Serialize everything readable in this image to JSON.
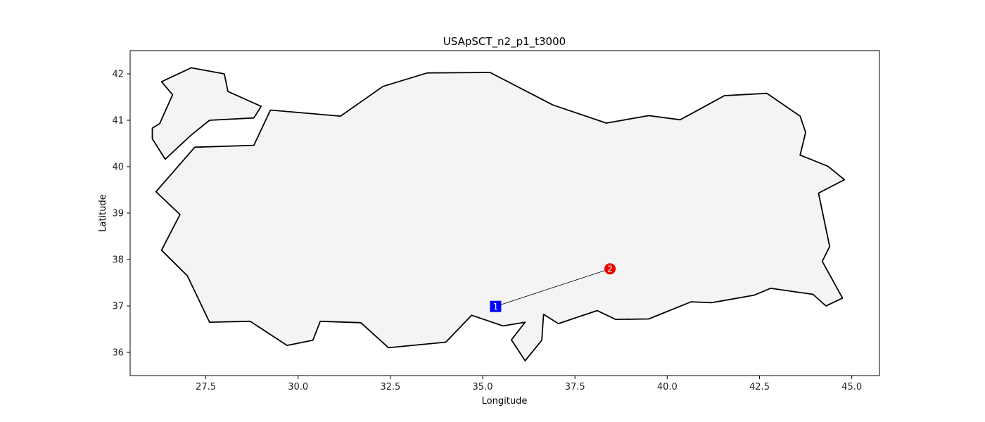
{
  "chart_data": {
    "type": "scatter",
    "title": "USApSCT_n2_p1_t3000",
    "xlabel": "Longitude",
    "ylabel": "Latitude",
    "xlim": [
      25.45,
      45.75
    ],
    "ylim": [
      35.5,
      42.5
    ],
    "xticks": [
      27.5,
      30.0,
      32.5,
      35.0,
      37.5,
      40.0,
      42.5,
      45.0
    ],
    "xtick_labels": [
      "27.5",
      "30.0",
      "32.5",
      "35.0",
      "37.5",
      "40.0",
      "42.5",
      "45.0"
    ],
    "yticks": [
      36,
      37,
      38,
      39,
      40,
      41,
      42
    ],
    "ytick_labels": [
      "36",
      "37",
      "38",
      "39",
      "40",
      "41",
      "42"
    ],
    "grid": false,
    "regions": [
      {
        "fill": "#f4f4f4",
        "stroke": "#000000",
        "points": [
          [
            26.3,
            41.83
          ],
          [
            27.1,
            42.13
          ],
          [
            28.0,
            42.0
          ],
          [
            28.1,
            41.62
          ],
          [
            29.0,
            41.3
          ],
          [
            28.8,
            41.05
          ],
          [
            27.6,
            41.0
          ],
          [
            27.1,
            40.68
          ],
          [
            26.4,
            40.16
          ],
          [
            26.05,
            40.6
          ],
          [
            26.05,
            40.83
          ],
          [
            26.25,
            40.93
          ],
          [
            26.6,
            41.55
          ],
          [
            26.3,
            41.83
          ]
        ]
      },
      {
        "fill": "#f4f4f4",
        "stroke": "#000000",
        "points": [
          [
            27.2,
            40.42
          ],
          [
            28.8,
            40.46
          ],
          [
            29.25,
            41.22
          ],
          [
            31.15,
            41.09
          ],
          [
            32.3,
            41.73
          ],
          [
            33.5,
            42.02
          ],
          [
            35.2,
            42.03
          ],
          [
            36.9,
            41.33
          ],
          [
            38.35,
            40.94
          ],
          [
            39.5,
            41.1
          ],
          [
            40.35,
            41.01
          ],
          [
            41.55,
            41.53
          ],
          [
            42.7,
            41.58
          ],
          [
            43.6,
            41.09
          ],
          [
            43.75,
            40.74
          ],
          [
            43.6,
            40.25
          ],
          [
            44.35,
            40.01
          ],
          [
            44.8,
            39.72
          ],
          [
            44.1,
            39.43
          ],
          [
            44.4,
            38.28
          ],
          [
            44.2,
            37.96
          ],
          [
            44.75,
            37.17
          ],
          [
            44.3,
            37.0
          ],
          [
            43.95,
            37.25
          ],
          [
            42.8,
            37.38
          ],
          [
            42.35,
            37.23
          ],
          [
            41.2,
            37.07
          ],
          [
            40.65,
            37.09
          ],
          [
            39.5,
            36.72
          ],
          [
            38.6,
            36.71
          ],
          [
            38.1,
            36.9
          ],
          [
            37.05,
            36.62
          ],
          [
            36.65,
            36.82
          ],
          [
            36.6,
            36.26
          ],
          [
            36.15,
            35.82
          ],
          [
            35.78,
            36.27
          ],
          [
            36.15,
            36.65
          ],
          [
            35.55,
            36.57
          ],
          [
            34.7,
            36.8
          ],
          [
            34.0,
            36.22
          ],
          [
            32.45,
            36.1
          ],
          [
            31.7,
            36.64
          ],
          [
            30.6,
            36.67
          ],
          [
            30.4,
            36.26
          ],
          [
            29.7,
            36.15
          ],
          [
            28.7,
            36.67
          ],
          [
            27.6,
            36.65
          ],
          [
            27.0,
            37.65
          ],
          [
            26.3,
            38.2
          ],
          [
            26.8,
            38.97
          ],
          [
            26.15,
            39.46
          ],
          [
            27.2,
            40.42
          ]
        ]
      }
    ],
    "edges": [
      {
        "from": 1,
        "to": 2,
        "color": "#000000"
      }
    ],
    "nodes": [
      {
        "id": 1,
        "label": "1",
        "x": 35.35,
        "y": 36.99,
        "marker": "square",
        "color": "#0000ff"
      },
      {
        "id": 2,
        "label": "2",
        "x": 38.45,
        "y": 37.8,
        "marker": "circle",
        "color": "#ee0000"
      }
    ]
  }
}
